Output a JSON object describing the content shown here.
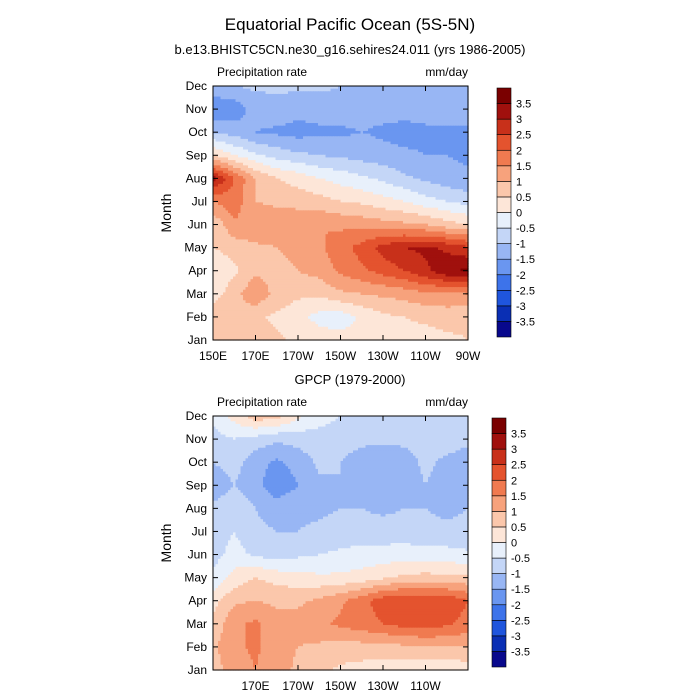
{
  "figure": {
    "title": "Equatorial Pacific Ocean (5S-5N)"
  },
  "chart_data": [
    {
      "type": "heatmap",
      "subtitle": "b.e13.BHISTC5CN.ne30_g16.sehires24.011 (yrs 1986-2005)",
      "left_label": "Precipitation rate",
      "right_label": "mm/day",
      "ylabel": "Month",
      "xlabel": "",
      "months": [
        "Jan",
        "Feb",
        "Mar",
        "Apr",
        "May",
        "Jun",
        "Jul",
        "Aug",
        "Sep",
        "Oct",
        "Nov",
        "Dec"
      ],
      "x_ticks": [
        "150E",
        "170E",
        "170W",
        "150W",
        "130W",
        "110W",
        "90W"
      ],
      "levels": [
        "-3.5",
        "-3",
        "-2.5",
        "-2",
        "-1.5",
        "-1",
        "-0.5",
        "0",
        "0.5",
        "1",
        "1.5",
        "2",
        "2.5",
        "3",
        "3.5"
      ],
      "colors": [
        "#08088c",
        "#0a2fb4",
        "#1f55dd",
        "#3d73ea",
        "#6a96f0",
        "#98b6f4",
        "#c4d6f7",
        "#e8f0fb",
        "#fde6d8",
        "#fbc7ab",
        "#f7a27c",
        "#f07a50",
        "#e4532e",
        "#c8301a",
        "#a0100d",
        "#7a0000"
      ],
      "grid_lon": [
        150,
        160,
        170,
        180,
        190,
        200,
        210,
        220,
        230,
        240,
        250,
        260,
        270
      ],
      "grid": [
        [
          0.6,
          0.9,
          0.7,
          0.6,
          0.4,
          0.3,
          0.2,
          0.2,
          0.3,
          0.3,
          0.3,
          0.4,
          0.5
        ],
        [
          0.9,
          1.0,
          0.6,
          0.4,
          0.2,
          -0.2,
          -0.3,
          0.1,
          0.4,
          0.5,
          0.6,
          0.7,
          0.6
        ],
        [
          0.2,
          0.8,
          1.4,
          0.8,
          0.6,
          0.6,
          0.9,
          1.0,
          1.1,
          1.2,
          1.4,
          1.4,
          1.5
        ],
        [
          0.1,
          0.4,
          0.9,
          0.8,
          1.0,
          1.2,
          1.6,
          1.9,
          2.2,
          2.5,
          2.9,
          3.4,
          3.6
        ],
        [
          0.5,
          0.7,
          0.9,
          1.0,
          1.2,
          1.4,
          1.8,
          2.2,
          2.7,
          3.0,
          3.1,
          2.9,
          2.6
        ],
        [
          0.6,
          1.4,
          1.4,
          1.3,
          1.4,
          1.5,
          1.4,
          1.3,
          1.2,
          1.1,
          1.0,
          0.7,
          0.5
        ],
        [
          1.5,
          1.8,
          1.0,
          0.9,
          0.8,
          0.7,
          0.5,
          0.4,
          0.2,
          0.0,
          -0.3,
          -0.5,
          -0.7
        ],
        [
          3.2,
          2.0,
          1.0,
          0.5,
          0.3,
          0.0,
          -0.2,
          -0.4,
          -0.6,
          -0.9,
          -1.1,
          -1.3,
          -1.4
        ],
        [
          0.5,
          0.0,
          -0.4,
          -0.7,
          -0.9,
          -1.0,
          -1.1,
          -1.2,
          -1.3,
          -1.4,
          -1.5,
          -1.5,
          -1.6
        ],
        [
          -1.0,
          -1.2,
          -1.5,
          -1.6,
          -1.7,
          -1.6,
          -1.6,
          -1.5,
          -1.6,
          -1.7,
          -1.6,
          -1.6,
          -1.6
        ],
        [
          -1.9,
          -1.8,
          -1.3,
          -1.2,
          -1.3,
          -1.3,
          -1.2,
          -1.3,
          -1.3,
          -1.3,
          -1.3,
          -1.2,
          -1.2
        ],
        [
          -1.2,
          -1.0,
          -0.9,
          -0.9,
          -0.9,
          -0.9,
          -1.0,
          -1.1,
          -1.1,
          -1.1,
          -1.0,
          -1.0,
          -1.0
        ]
      ]
    },
    {
      "type": "heatmap",
      "subtitle": "GPCP (1979-2000)",
      "left_label": "Precipitation rate",
      "right_label": "mm/day",
      "ylabel": "Month",
      "xlabel": "",
      "months": [
        "Jan",
        "Feb",
        "Mar",
        "Apr",
        "May",
        "Jun",
        "Jul",
        "Aug",
        "Sep",
        "Oct",
        "Nov",
        "Dec"
      ],
      "x_ticks": [
        "170E",
        "170W",
        "150W",
        "130W",
        "110W"
      ],
      "levels": [
        "-3.5",
        "-3",
        "-2.5",
        "-2",
        "-1.5",
        "-1",
        "-0.5",
        "0",
        "0.5",
        "1",
        "1.5",
        "2",
        "2.5",
        "3",
        "3.5"
      ],
      "colors": [
        "#08088c",
        "#0a2fb4",
        "#1f55dd",
        "#3d73ea",
        "#6a96f0",
        "#98b6f4",
        "#c4d6f7",
        "#e8f0fb",
        "#fde6d8",
        "#fbc7ab",
        "#f7a27c",
        "#f07a50",
        "#e4532e",
        "#c8301a",
        "#a0100d",
        "#7a0000"
      ],
      "grid_lon": [
        150,
        160,
        170,
        180,
        190,
        200,
        210,
        220,
        230,
        240,
        250,
        260,
        270
      ],
      "grid": [
        [
          0.8,
          1.2,
          1.5,
          1.2,
          0.9,
          0.6,
          0.4,
          0.3,
          0.2,
          0.1,
          0.0,
          0.1,
          0.2
        ],
        [
          0.9,
          1.4,
          1.6,
          1.2,
          1.0,
          0.9,
          0.8,
          0.8,
          0.8,
          0.9,
          1.0,
          1.0,
          1.0
        ],
        [
          0.6,
          1.4,
          1.6,
          1.2,
          1.2,
          1.4,
          1.6,
          1.8,
          2.0,
          2.2,
          2.2,
          2.1,
          1.8
        ],
        [
          0.3,
          0.9,
          1.0,
          0.9,
          0.9,
          1.1,
          1.4,
          1.8,
          2.3,
          2.5,
          2.4,
          2.4,
          2.0
        ],
        [
          -0.4,
          0.2,
          0.5,
          0.3,
          0.2,
          0.1,
          0.1,
          0.2,
          0.4,
          0.6,
          0.7,
          0.6,
          0.6
        ],
        [
          -0.7,
          -0.3,
          -0.6,
          -0.7,
          -0.6,
          -0.5,
          -0.4,
          -0.3,
          -0.3,
          -0.2,
          -0.3,
          -0.3,
          -0.4
        ],
        [
          -0.8,
          -0.5,
          -0.9,
          -1.0,
          -1.0,
          -0.9,
          -0.8,
          -0.8,
          -0.8,
          -0.8,
          -0.9,
          -0.9,
          -0.9
        ],
        [
          -0.9,
          -0.7,
          -1.0,
          -1.2,
          -1.1,
          -1.1,
          -1.0,
          -1.0,
          -1.1,
          -1.0,
          -1.0,
          -1.1,
          -1.0
        ],
        [
          -1.3,
          -1.0,
          -1.3,
          -1.9,
          -1.5,
          -1.1,
          -1.0,
          -1.2,
          -1.3,
          -1.2,
          -1.0,
          -1.2,
          -1.3
        ],
        [
          -1.0,
          -0.8,
          -1.3,
          -1.6,
          -1.3,
          -0.9,
          -1.0,
          -1.2,
          -1.3,
          -1.2,
          -0.9,
          -1.1,
          -1.2
        ],
        [
          -0.7,
          -0.5,
          -0.7,
          -0.9,
          -0.8,
          -0.7,
          -0.8,
          -0.9,
          -0.9,
          -0.9,
          -0.8,
          -0.8,
          -0.9
        ],
        [
          -0.4,
          0.2,
          0.8,
          0.7,
          0.1,
          -0.3,
          -0.5,
          -0.6,
          -0.6,
          -0.7,
          -0.7,
          -0.7,
          -0.7
        ]
      ]
    }
  ]
}
